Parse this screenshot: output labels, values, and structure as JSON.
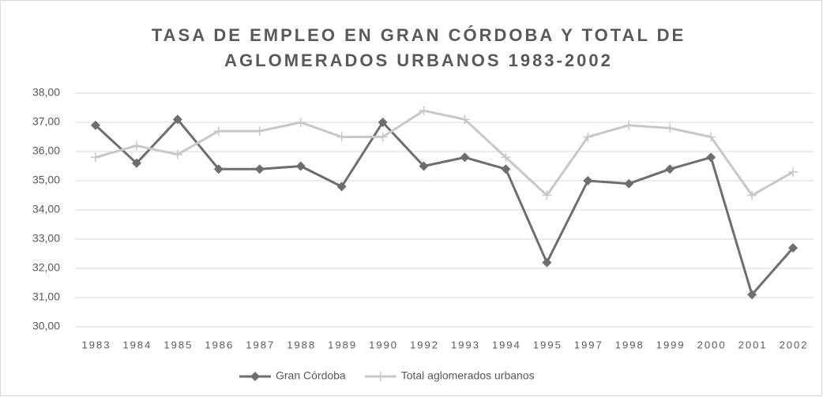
{
  "chart_data": {
    "type": "line",
    "title": [
      "TASA DE EMPLEO EN GRAN CÓRDOBA Y TOTAL DE",
      "AGLOMERADOS URBANOS 1983-2002"
    ],
    "categories": [
      "1983",
      "1984",
      "1985",
      "1986",
      "1987",
      "1988",
      "1989",
      "1990",
      "1992",
      "1993",
      "1994",
      "1995",
      "1997",
      "1998",
      "1999",
      "2000",
      "2001",
      "2002"
    ],
    "series": [
      {
        "name": "Gran Córdoba",
        "color": "#6e6e6e",
        "marker": "diamond",
        "values": [
          36.9,
          35.6,
          37.1,
          35.4,
          35.4,
          35.5,
          34.8,
          37.0,
          35.5,
          35.8,
          35.4,
          32.2,
          35.0,
          34.9,
          35.4,
          35.8,
          31.1,
          32.7
        ]
      },
      {
        "name": "Total  aglomerados urbanos",
        "color": "#c8c8c8",
        "marker": "plus",
        "values": [
          35.8,
          36.2,
          35.9,
          36.7,
          36.7,
          37.0,
          36.5,
          36.5,
          37.4,
          37.1,
          35.8,
          34.5,
          36.5,
          36.9,
          36.8,
          36.5,
          34.5,
          35.3
        ]
      }
    ],
    "ylim": [
      30,
      38
    ],
    "yticks": [
      {
        "value": 30,
        "label": "30,00"
      },
      {
        "value": 31,
        "label": "31,00"
      },
      {
        "value": 32,
        "label": "32,00"
      },
      {
        "value": 33,
        "label": "33,00"
      },
      {
        "value": 34,
        "label": "34,00"
      },
      {
        "value": 35,
        "label": "35,00"
      },
      {
        "value": 36,
        "label": "36,00"
      },
      {
        "value": 37,
        "label": "37,00"
      },
      {
        "value": 38,
        "label": "38,00"
      }
    ],
    "grid": true,
    "legend": "bottom"
  }
}
